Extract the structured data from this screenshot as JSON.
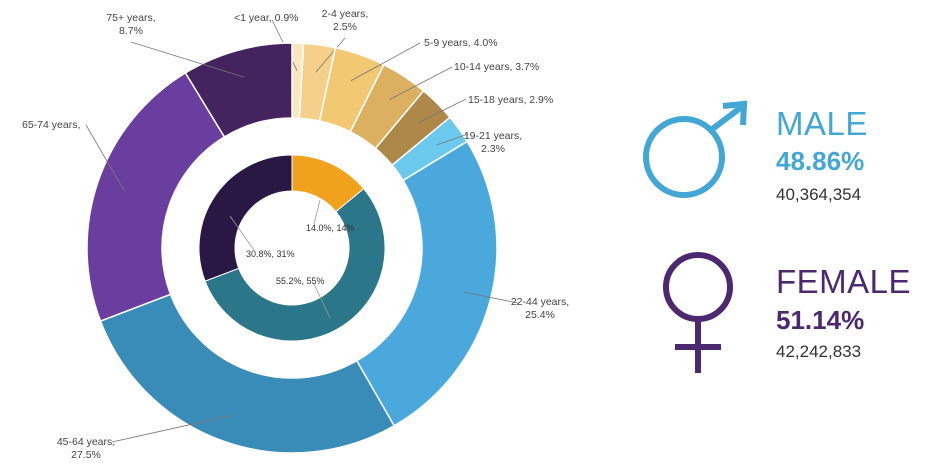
{
  "colors": {
    "male": "#43a7d6",
    "female": "#4b2870",
    "text": "#444444"
  },
  "chart_data": {
    "type": "pie",
    "variant": "nested donut",
    "title": "",
    "outer_ring": {
      "labels": [
        "<1 year",
        "2-4 years",
        "5-9 years",
        "10-14 years",
        "15-18 years",
        "19-21 years",
        "22-44 years",
        "45-64 years",
        "65-74 years",
        "75+ years"
      ],
      "values": [
        0.9,
        2.5,
        4.0,
        3.7,
        2.9,
        2.3,
        25.4,
        27.5,
        null,
        8.7
      ],
      "display": [
        [
          "<1 year, 0.9%"
        ],
        [
          "2-4 years,",
          "2.5%"
        ],
        [
          "5-9 years, 4.0%"
        ],
        [
          "10-14 years, 3.7%"
        ],
        [
          "15-18 years, 2.9%"
        ],
        [
          "19-21 years,",
          "2.3%"
        ],
        [
          "22-44 years,",
          "25.4%"
        ],
        [
          "45-64 years,",
          "27.5%"
        ],
        [
          "65-74 years,"
        ],
        [
          "75+ years,",
          "8.7%"
        ]
      ],
      "colors": [
        "#fbe6bd",
        "#f6d08a",
        "#f3c872",
        "#dcb061",
        "#ad8849",
        "#6cc9ee",
        "#4aa8dd",
        "#3a8cb8",
        "#6a3e9e",
        "#45235f"
      ]
    },
    "inner_ring": {
      "values": [
        14.0,
        55.2,
        30.8
      ],
      "display": [
        "14.0%, 14%",
        "55.2%, 55%",
        "30.8%, 31%"
      ],
      "colors": [
        "#f0a21e",
        "#2b7789",
        "#2a1844"
      ]
    }
  },
  "gender": {
    "male": {
      "label": "MALE",
      "percent": "48.86%",
      "count": "40,364,354",
      "icon": "male-symbol-icon"
    },
    "female": {
      "label": "FEMALE",
      "percent": "51.14%",
      "count": "42,242,833",
      "icon": "female-symbol-icon"
    }
  }
}
